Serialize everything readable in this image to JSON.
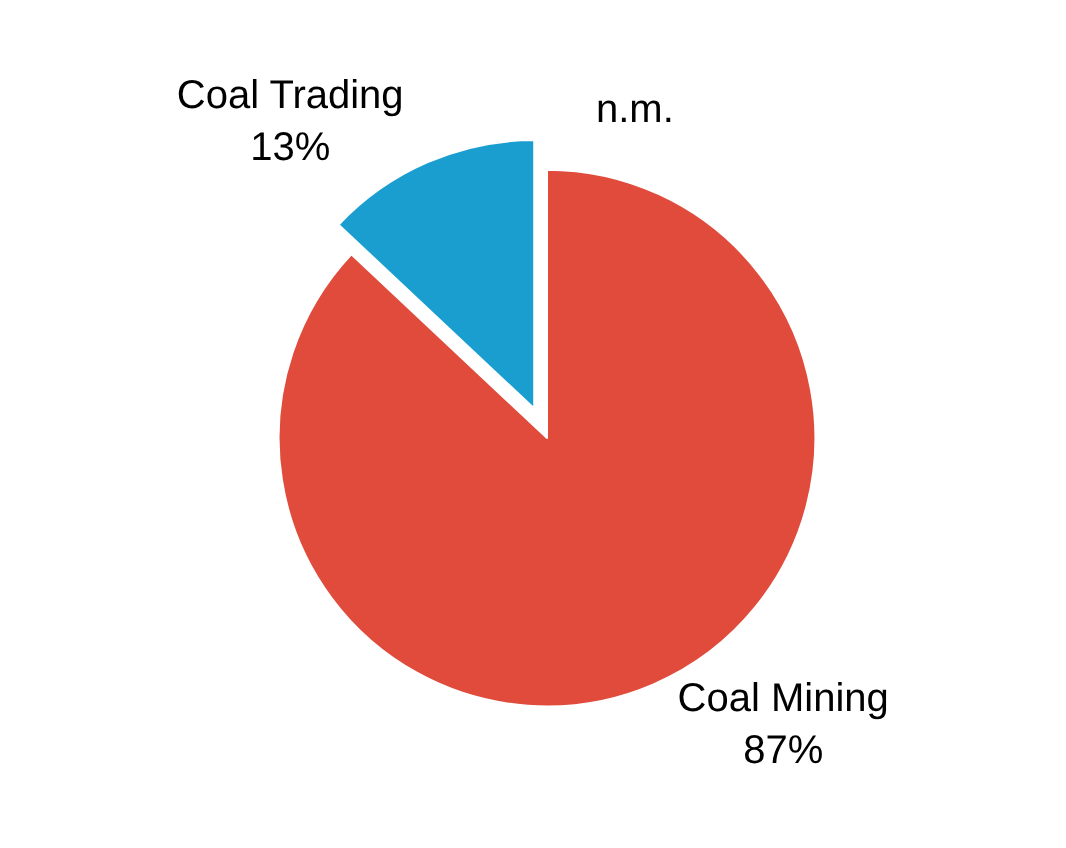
{
  "chart_data": {
    "type": "pie",
    "categories": [
      "Coal Mining",
      "Coal Trading"
    ],
    "values": [
      87,
      13
    ],
    "value_labels": [
      "87%",
      "13%"
    ],
    "colors": [
      "#e04b3c",
      "#1a9ed0"
    ],
    "annotations": [
      "n.m."
    ],
    "legend": false
  }
}
